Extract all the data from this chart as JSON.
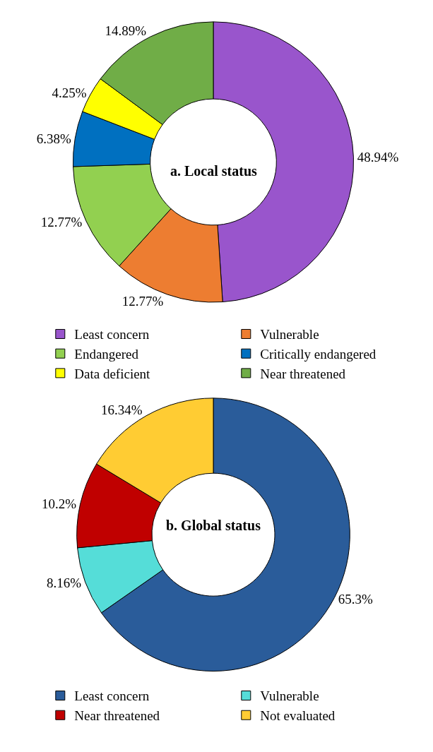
{
  "chart_data": [
    {
      "type": "donut",
      "title": "a. Local status",
      "categories": [
        "Least concern",
        "Vulnerable",
        "Endangered",
        "Critically endangered",
        "Data deficient",
        "Near threatened"
      ],
      "values": [
        48.94,
        12.77,
        12.77,
        6.38,
        4.25,
        14.89
      ],
      "value_labels": [
        "48.94%",
        "12.77%",
        "12.77%",
        "6.38%",
        "4.25%",
        "14.89%"
      ],
      "colors": [
        "#9955cc",
        "#ed7d31",
        "#92d050",
        "#0070c0",
        "#ffff00",
        "#70ad47"
      ],
      "legend": "bottom"
    },
    {
      "type": "donut",
      "title": "b. Global status",
      "categories": [
        "Least concern",
        "Vulnerable",
        "Near threatened",
        "Not evaluated"
      ],
      "values": [
        65.3,
        8.16,
        10.2,
        16.34
      ],
      "value_labels": [
        "65.3%",
        "8.16%",
        "10.2%",
        "16.34%"
      ],
      "colors": [
        "#2a5c9a",
        "#55ddd8",
        "#c00000",
        "#ffcc33"
      ],
      "legend": "bottom"
    }
  ]
}
